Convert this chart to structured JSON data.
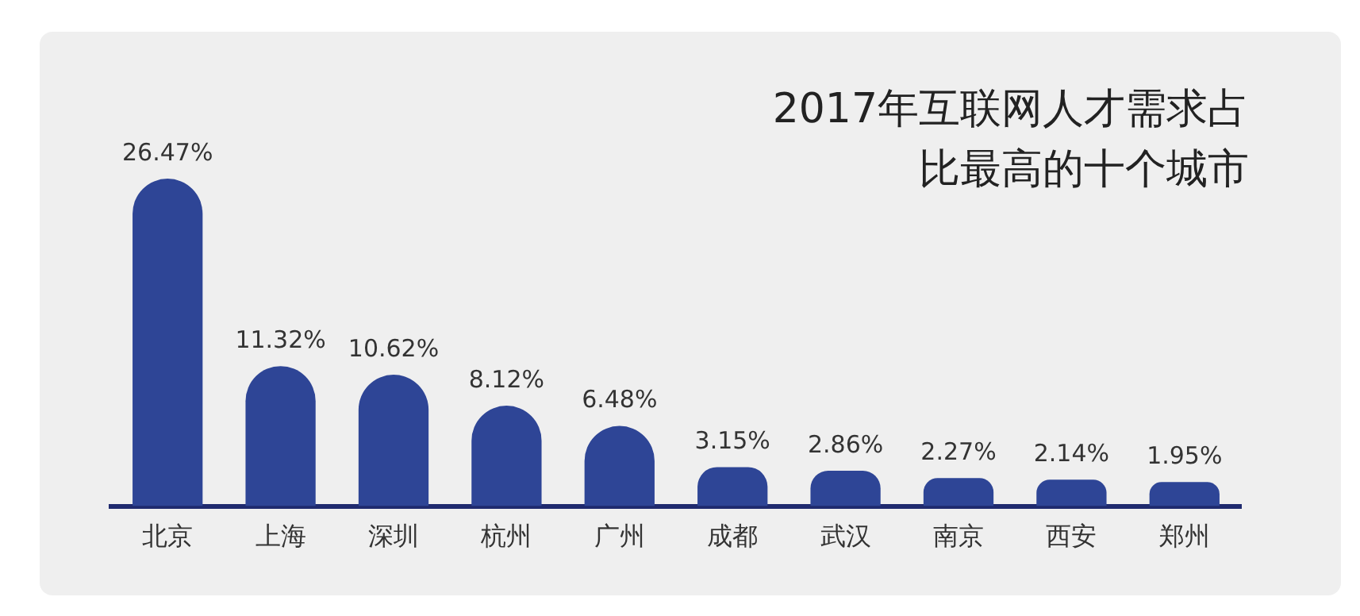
{
  "chart_data": {
    "type": "bar",
    "title": "2017年互联网人才需求占比最高的十个城市",
    "categories": [
      "北京",
      "上海",
      "深圳",
      "杭州",
      "广州",
      "成都",
      "武汉",
      "南京",
      "西安",
      "郑州"
    ],
    "values": [
      26.47,
      11.32,
      10.62,
      8.12,
      6.48,
      3.15,
      2.86,
      2.27,
      2.14,
      1.95
    ],
    "value_labels": [
      "26.47%",
      "11.32%",
      "10.62%",
      "8.12%",
      "6.48%",
      "3.15%",
      "2.86%",
      "2.27%",
      "2.14%",
      "1.95%"
    ],
    "color": "#2e4596",
    "grid": false,
    "legend": false
  }
}
